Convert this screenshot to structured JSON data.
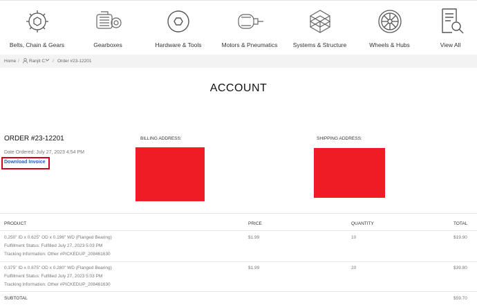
{
  "nav": {
    "categories": [
      {
        "label": "Belts, Chain & Gears",
        "icon": "gear-icon"
      },
      {
        "label": "Gearboxes",
        "icon": "gearbox-icon"
      },
      {
        "label": "Hardware & Tools",
        "icon": "hex-nut-icon"
      },
      {
        "label": "Motors & Pneumatics",
        "icon": "motor-icon"
      },
      {
        "label": "Systems & Structure",
        "icon": "structure-icon"
      },
      {
        "label": "Wheels & Hubs",
        "icon": "wheel-icon"
      },
      {
        "label": "View All",
        "icon": "catalog-search-icon"
      }
    ]
  },
  "breadcrumb": {
    "home": "Home",
    "user": "Ranjit C.",
    "current": "Order #23-12201"
  },
  "page": {
    "title": "ACCOUNT"
  },
  "order": {
    "number": "ORDER #23-12201",
    "date": "Date Ordered: July 27, 2023 4:54 PM",
    "download": "Download Invoice",
    "billing_label": "BILLING ADDRESS:",
    "shipping_label": "SHIPPING ADDRESS:",
    "redact_color": "#ef1c24",
    "highlight_color": "#d0021b",
    "link_color": "#2a5db0"
  },
  "table": {
    "headers": {
      "product": "PRODUCT",
      "price": "PRICE",
      "quantity": "QUANTITY",
      "total": "TOTAL"
    },
    "rows": [
      {
        "name": "0.250\" ID x 0.625\" OD x 0.196\" WD (Flanged Bearing)",
        "fulfillment": "Fulfillment Status: Fulfilled July 27, 2023 5:03 PM",
        "tracking": "Tracking Information: Other #PICKEDUP_208461630",
        "price": "$1.99",
        "quantity": "10",
        "total": "$19.90"
      },
      {
        "name": "0.375\" ID x 0.875\" OD x 0.280\" WD (Flanged Bearing)",
        "fulfillment": "Fulfillment Status: Fulfilled July 27, 2023 5:03 PM",
        "tracking": "Tracking Information: Other #PICKEDUP_208461630",
        "price": "$1.99",
        "quantity": "20",
        "total": "$39.80"
      }
    ],
    "subtotal_label": "SUBTOTAL",
    "subtotal_value": "$59.70"
  }
}
